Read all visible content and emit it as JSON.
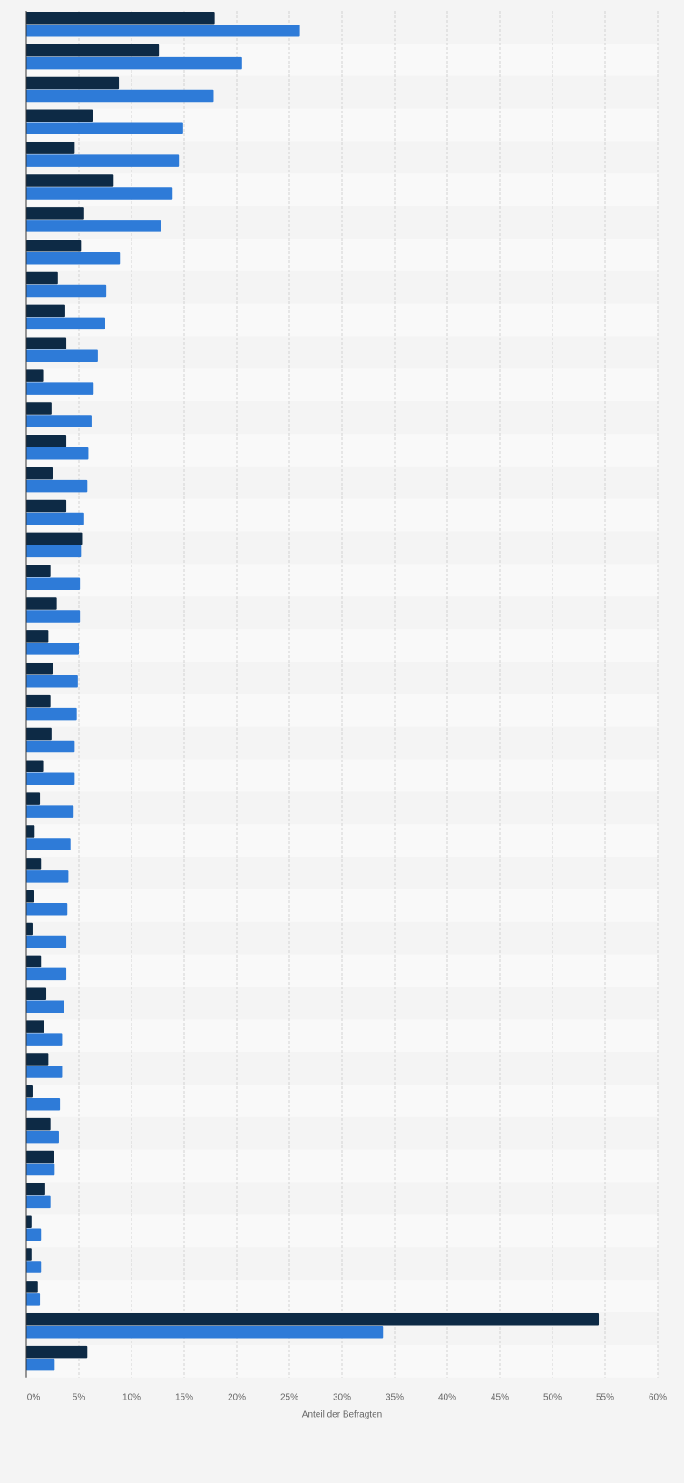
{
  "chart_data": {
    "type": "bar",
    "orientation": "horizontal",
    "title": "",
    "xlabel": "Anteil der Befragten",
    "ylabel": "",
    "xlim": [
      0,
      60
    ],
    "x_ticks": [
      "0%",
      "5%",
      "10%",
      "15%",
      "20%",
      "25%",
      "30%",
      "35%",
      "40%",
      "45%",
      "50%",
      "55%",
      "60%"
    ],
    "grid": true,
    "legend": "none",
    "series_colors": [
      "#0d2a45",
      "#2e7bd8"
    ],
    "category_labels_visible": false,
    "series": [
      {
        "values": [
          17.9,
          12.6,
          8.8,
          6.3,
          4.6,
          8.3,
          5.5,
          5.2,
          3.0,
          3.7,
          3.8,
          1.6,
          2.4,
          3.8,
          2.5,
          3.8,
          5.3,
          2.3,
          2.9,
          2.1,
          2.5,
          2.3,
          2.4,
          1.6,
          1.3,
          0.8,
          1.4,
          0.7,
          0.6,
          1.4,
          1.9,
          1.7,
          2.1,
          0.6,
          2.3,
          2.6,
          1.8,
          0.5,
          0.5,
          1.1,
          54.4,
          5.8
        ]
      },
      {
        "values": [
          26.0,
          20.5,
          17.8,
          14.9,
          14.5,
          13.9,
          12.8,
          8.9,
          7.6,
          7.5,
          6.8,
          6.4,
          6.2,
          5.9,
          5.8,
          5.5,
          5.2,
          5.1,
          5.1,
          5.0,
          4.9,
          4.8,
          4.6,
          4.6,
          4.5,
          4.2,
          4.0,
          3.9,
          3.8,
          3.8,
          3.6,
          3.4,
          3.4,
          3.2,
          3.1,
          2.7,
          2.3,
          1.4,
          1.4,
          1.3,
          33.9,
          2.7
        ]
      }
    ]
  }
}
